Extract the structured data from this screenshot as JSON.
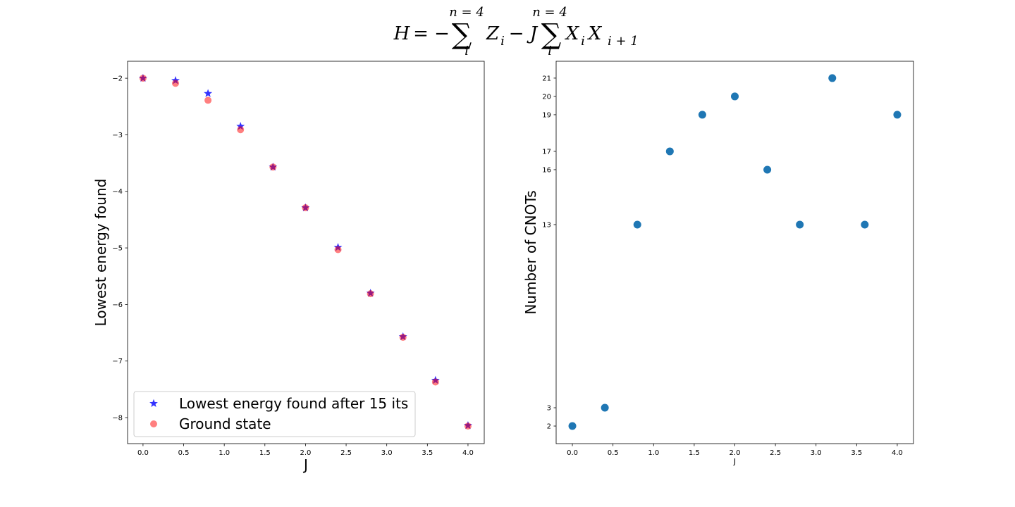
{
  "suptitle": [
    "H",
    "= −",
    "∑",
    "n = 4",
    "i",
    "Z",
    "i",
    "− J",
    "∑",
    "n = 4",
    "i",
    "X",
    "i",
    "X",
    "i + 1"
  ],
  "chart_data": [
    {
      "type": "scatter",
      "xlabel": "J",
      "ylabel": "Lowest energy found",
      "x": [
        0.0,
        0.4,
        0.8,
        1.2,
        1.6,
        2.0,
        2.4,
        2.8,
        3.2,
        3.6,
        4.0
      ],
      "series": [
        {
          "name": "Lowest energy found after 15 its",
          "color": "#0000ff",
          "marker": "star",
          "values": [
            -2.0,
            -2.04,
            -2.27,
            -2.85,
            -3.57,
            -4.29,
            -4.99,
            -5.8,
            -6.57,
            -7.34,
            -8.14
          ]
        },
        {
          "name": "Ground state",
          "color": "#ff0000",
          "marker": "circle",
          "values": [
            -2.0,
            -2.09,
            -2.39,
            -2.91,
            -3.57,
            -4.29,
            -5.03,
            -5.81,
            -6.58,
            -7.37,
            -8.15
          ]
        }
      ],
      "xlim": [
        -0.19,
        4.2
      ],
      "ylim": [
        -8.46,
        -1.7
      ],
      "xticks": [
        {
          "value": 0,
          "label": "0.0"
        },
        0.5,
        {
          "value": 1,
          "label": "1.0"
        },
        1.5,
        {
          "value": 2,
          "label": "2.0"
        },
        2.5,
        {
          "value": 3,
          "label": "3.0"
        },
        3.5,
        {
          "value": 4,
          "label": "4.0"
        }
      ],
      "yticks": [
        {
          "value": -8,
          "label": "−8"
        },
        {
          "value": -7,
          "label": "−7"
        },
        {
          "value": -6,
          "label": "−6"
        },
        {
          "value": -5,
          "label": "−5"
        },
        {
          "value": -4,
          "label": "−4"
        },
        {
          "value": -3,
          "label": "−3"
        },
        {
          "value": -2,
          "label": "−2"
        }
      ],
      "legend": "lower left"
    },
    {
      "type": "scatter",
      "xlabel": "J",
      "ylabel": "Number of CNOTs",
      "x": [
        0.0,
        0.4,
        0.8,
        1.2,
        1.6,
        2.0,
        2.4,
        2.8,
        3.2,
        3.6,
        4.0
      ],
      "series": [
        {
          "color": "#1f77b4",
          "marker": "circle",
          "values": [
            2,
            3,
            13,
            17,
            19,
            20,
            16,
            13,
            21,
            13,
            19
          ]
        }
      ],
      "xlim": [
        -0.2,
        4.2
      ],
      "ylim": [
        1.04,
        21.92
      ],
      "xticks": [
        {
          "value": 0,
          "label": "0.0"
        },
        0.5,
        {
          "value": 1,
          "label": "1.0"
        },
        1.5,
        {
          "value": 2,
          "label": "2.0"
        },
        2.5,
        {
          "value": 3,
          "label": "3.0"
        },
        3.5,
        {
          "value": 4,
          "label": "4.0"
        }
      ],
      "yticks": [
        2,
        3,
        13,
        16,
        17,
        19,
        20,
        21
      ]
    }
  ]
}
